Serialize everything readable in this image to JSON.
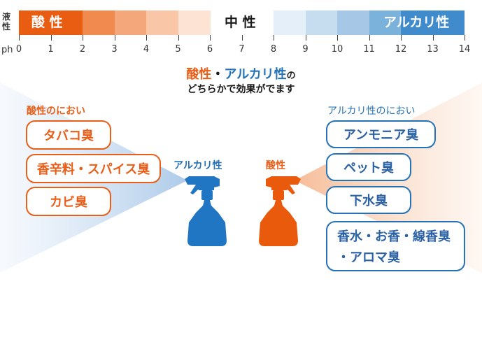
{
  "ph_scale": {
    "axis_label": "ph",
    "side_label": [
      "液",
      "性"
    ],
    "ticks": [
      "0",
      "1",
      "2",
      "3",
      "4",
      "5",
      "6",
      "7",
      "8",
      "9",
      "10",
      "11",
      "12",
      "13",
      "14"
    ],
    "acid_label": "酸 性",
    "neutral_label": "中 性",
    "alkali_label": "アルカリ性",
    "acid_colors": [
      "#e95d12",
      "#f08a4f",
      "#f5a77c",
      "#f9c6a8",
      "#fce3d3"
    ],
    "alkali_colors": [
      "#e5eff9",
      "#c6dcef",
      "#a6c8e6",
      "#7ab2dc",
      "#3f8bcc"
    ]
  },
  "headline": {
    "acid_word": "酸性",
    "separator": "・",
    "alkali_word": "アルカリ性",
    "particle": "の",
    "line2": "どちらかで効果がでます"
  },
  "left": {
    "title": "酸性のにおい",
    "items": [
      "タバコ臭",
      "香辛料・スパイス臭",
      "カビ臭"
    ],
    "bottle_label": "アルカリ性",
    "bottle_color": "#2176c4"
  },
  "right": {
    "title": "アルカリ性のにおい",
    "items": [
      "アンモニア臭",
      "ペット臭",
      "下水臭",
      "香水・お香・線香臭",
      "・アロマ臭"
    ],
    "bottle_label": "酸性",
    "bottle_color": "#ea5a0d"
  },
  "colors": {
    "orange": "#e95f1a",
    "blue": "#2672b6",
    "text": "#1a1a1a"
  }
}
